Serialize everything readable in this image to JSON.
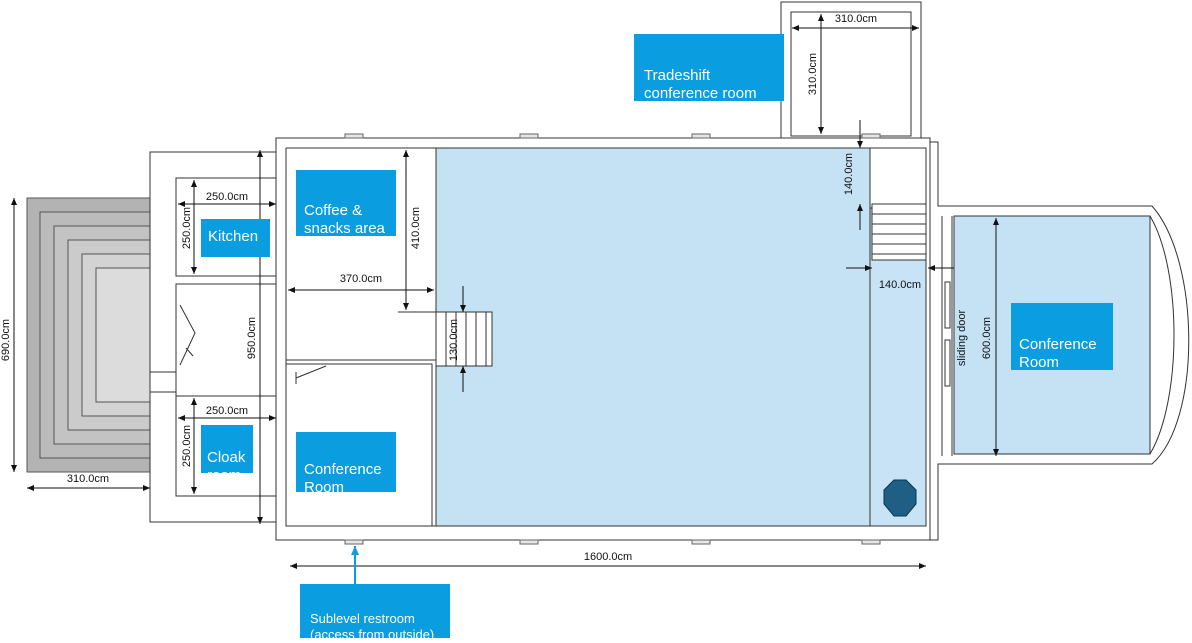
{
  "dimensions": {
    "steps_width": "310.0cm",
    "steps_height": "690.0cm",
    "kitchen_width": "250.0cm",
    "kitchen_height": "250.0cm",
    "cloak_width": "250.0cm",
    "cloak_height": "250.0cm",
    "corridor_height": "950.0cm",
    "coffee_width": "370.0cm",
    "coffee_height": "410.0cm",
    "stair_height": "130.0cm",
    "building_width": "1600.0cm",
    "tradeshift_width": "310.0cm",
    "tradeshift_height": "310.0cm",
    "landing_height": "140.0cm",
    "landing_width": "140.0cm",
    "conference_right_height": "600.0cm"
  },
  "annotations": {
    "sliding_door": "sliding door"
  },
  "labels": {
    "kitchen": "Kitchen",
    "cloak_room": "Cloak\nroom",
    "coffee_area": "Coffee &\nsnacks area",
    "conference_left": "Conference\nRoom",
    "conference_right": "Conference\nRoom",
    "tradeshift": "Tradeshift\nconference room",
    "restroom": "Sublevel restroom\n(access from outside)"
  },
  "colors": {
    "room_fill": "#c5e2f5",
    "label_bg": "#0a9ee0",
    "steps_fill": "#b0b0b0",
    "column_fill": "#1f5f86"
  }
}
